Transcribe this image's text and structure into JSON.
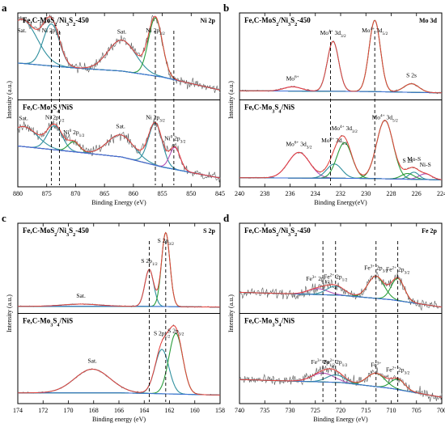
{
  "panels": [
    {
      "letter": "a",
      "tag": "Ni 2p",
      "top_sample": "Fe,C-MoS2/Ni3S2-450",
      "bottom_sample": "Fe,C-Mo3S4/NiS",
      "xlabel": "Binding Energy (eV)",
      "ylabel": "Intensity (a.u.)",
      "xlim": [
        880,
        845
      ],
      "ticks": [
        880,
        875,
        870,
        865,
        860,
        855,
        850,
        845
      ]
    },
    {
      "letter": "b",
      "tag": "Mo 3d",
      "top_sample": "Fe,C-MoS2/Ni3S2-450",
      "bottom_sample": "Fe,C-Mo3S4/NiS",
      "xlabel": "Binding Energy(eV)",
      "ylabel": "Intensity (a.u.)",
      "xlim": [
        240,
        224
      ],
      "ticks": [
        240,
        238,
        236,
        234,
        232,
        230,
        228,
        226,
        224
      ]
    },
    {
      "letter": "c",
      "tag": "S 2p",
      "top_sample": "Fe,C-MoS2/Ni3S2-450",
      "bottom_sample": "Fe,C-Mo3S4/NiS",
      "xlabel": "Binding energy (eV)",
      "ylabel": "Intensity (a.u.)",
      "xlim": [
        174,
        158
      ],
      "ticks": [
        174,
        172,
        170,
        168,
        166,
        164,
        162,
        160,
        158
      ]
    },
    {
      "letter": "d",
      "tag": "Fe 2p",
      "top_sample": "Fe,C-MoS2/Ni3S2-450",
      "bottom_sample": "Fe,C-Mo3S4/NiS",
      "xlabel": "Binding Energy (eV)",
      "ylabel": "Intensity (a.u.)",
      "xlim": [
        740,
        700
      ],
      "ticks": [
        740,
        735,
        730,
        725,
        720,
        715,
        710,
        705,
        700
      ]
    }
  ],
  "chart_data": [
    {
      "type": "line",
      "title": "Ni 2p",
      "xlabel": "Binding Energy (eV)",
      "ylabel": "Intensity (a.u.)",
      "xlim": [
        880,
        845
      ],
      "grid": false,
      "dashed_lines_x": [
        874.2,
        872.8,
        856.2,
        853.0
      ],
      "top": {
        "sample": "Fe,C-MoS2/Ni3S2-450",
        "background": [
          [
            880,
            0.32
          ],
          [
            870,
            0.27
          ],
          [
            862,
            0.24
          ],
          [
            855,
            0.18
          ],
          [
            845,
            0.05
          ]
        ],
        "peaks": [
          {
            "label": "Sat.",
            "center": 879.3,
            "height": 0.44,
            "width": 2.6
          },
          {
            "label": "Ni 2p1/2",
            "center": 874.2,
            "height": 0.42,
            "width": 1.4
          },
          {
            "label": "Sat.",
            "center": 862.0,
            "height": 0.31,
            "width": 2.4
          },
          {
            "label": "Ni 2p3/2",
            "center": 856.2,
            "height": 0.58,
            "width": 1.2
          }
        ]
      },
      "bottom": {
        "sample": "Fe,C-Mo3S4/NiS",
        "background": [
          [
            880,
            0.36
          ],
          [
            870,
            0.3
          ],
          [
            862,
            0.25
          ],
          [
            855,
            0.15
          ],
          [
            845,
            0.04
          ]
        ],
        "peaks": [
          {
            "label": "Sat.",
            "center": 879.0,
            "height": 0.2,
            "width": 2.4
          },
          {
            "label": "Ni 2p1/2",
            "center": 873.6,
            "height": 0.24,
            "width": 1.3
          },
          {
            "label": "Ni0 2p1/2",
            "center": 870.3,
            "height": 0.1,
            "width": 1.0
          },
          {
            "label": "Sat.",
            "center": 862.2,
            "height": 0.22,
            "width": 2.3
          },
          {
            "label": "Ni 2p3/2",
            "center": 856.2,
            "height": 0.42,
            "width": 1.2
          },
          {
            "label": "Ni0 2p3/2",
            "center": 852.8,
            "height": 0.22,
            "width": 0.9
          }
        ]
      }
    },
    {
      "type": "line",
      "title": "Mo 3d",
      "xlabel": "Binding Energy(eV)",
      "ylabel": "Intensity (a.u.)",
      "xlim": [
        240,
        224
      ],
      "grid": false,
      "dashed_lines_x": [
        232.8,
        229.3
      ],
      "top": {
        "sample": "Fe,C-MoS2/Ni3S2-450",
        "background": [
          [
            240,
            0.06
          ],
          [
            230,
            0.05
          ],
          [
            224,
            0.03
          ]
        ],
        "peaks": [
          {
            "label": "Mo6+",
            "center": 235.8,
            "height": 0.06,
            "width": 0.7
          },
          {
            "label": "Mo4+ 3d3/2",
            "center": 232.6,
            "height": 0.7,
            "width": 0.45
          },
          {
            "label": "Mo4+ 3d5/2",
            "center": 229.3,
            "height": 1.0,
            "width": 0.45
          },
          {
            "label": "S 2s",
            "center": 226.4,
            "height": 0.12,
            "width": 0.6
          }
        ]
      },
      "bottom": {
        "sample": "Fe,C-Mo3S4/NiS",
        "background": [
          [
            240,
            0.06
          ],
          [
            230,
            0.05
          ],
          [
            224,
            0.03
          ]
        ],
        "peaks": [
          {
            "label": "Mo6+ 3d3/2",
            "center": 235.3,
            "height": 0.36,
            "width": 0.85
          },
          {
            "label": "Mo6+ 3d5/2",
            "center": 232.5,
            "height": 0.2,
            "width": 0.6
          },
          {
            "label": "Mo4+ 3d3/2",
            "center": 231.7,
            "height": 0.5,
            "width": 0.6
          },
          {
            "label": "Mo4+ 3d5/2",
            "center": 228.5,
            "height": 0.82,
            "width": 0.65
          },
          {
            "label": "Mo-S",
            "center": 226.2,
            "height": 0.1,
            "width": 0.4
          },
          {
            "label": "Ni-S",
            "center": 225.3,
            "height": 0.08,
            "width": 0.5
          },
          {
            "label": "S 2s",
            "center": 226.7,
            "height": 0.08,
            "width": 0.5
          }
        ]
      }
    },
    {
      "type": "line",
      "title": "S 2p",
      "xlabel": "Binding energy (eV)",
      "ylabel": "Intensity (a.u.)",
      "xlim": [
        174,
        158
      ],
      "grid": false,
      "dashed_lines_x": [
        163.6,
        162.3
      ],
      "top": {
        "sample": "Fe,C-MoS2/Ni3S2-450",
        "background": [
          [
            174,
            0.03
          ],
          [
            164,
            0.03
          ],
          [
            158,
            0.02
          ]
        ],
        "peaks": [
          {
            "label": "Sat.",
            "center": 169.0,
            "height": 0.03,
            "width": 1.5
          },
          {
            "label": "S 2p1/2",
            "center": 163.6,
            "height": 0.5,
            "width": 0.35
          },
          {
            "label": "S 2p3/2",
            "center": 162.3,
            "height": 1.0,
            "width": 0.33
          }
        ]
      },
      "bottom": {
        "sample": "Fe,C-Mo3S4/NiS",
        "background": [
          [
            174,
            0.08
          ],
          [
            166,
            0.08
          ],
          [
            158,
            0.05
          ]
        ],
        "peaks": [
          {
            "label": "Sat.",
            "center": 168.1,
            "height": 0.32,
            "width": 1.4
          },
          {
            "label": "S 2p1/2",
            "center": 162.6,
            "height": 0.6,
            "width": 0.55
          },
          {
            "label": "S 2p3/2",
            "center": 161.5,
            "height": 0.82,
            "width": 0.55
          }
        ]
      }
    },
    {
      "type": "line",
      "title": "Fe 2p",
      "xlabel": "Binding Energy (eV)",
      "ylabel": "Intensity (a.u.)",
      "xlim": [
        740,
        700
      ],
      "grid": false,
      "dashed_lines_x": [
        723.5,
        721.0,
        713.0,
        708.7
      ],
      "top": {
        "sample": "Fe,C-MoS2/Ni3S2-450",
        "background": [
          [
            740,
            0.22
          ],
          [
            720,
            0.18
          ],
          [
            710,
            0.12
          ],
          [
            700,
            0.02
          ]
        ],
        "peaks": [
          {
            "label": "Fe3+ 2p1/2",
            "center": 724.5,
            "height": 0.08,
            "width": 2.0
          },
          {
            "label": "Fe2+ 2p1/2",
            "center": 721.0,
            "height": 0.12,
            "width": 1.8
          },
          {
            "label": "Fe3+ 2p3/2",
            "center": 713.0,
            "height": 0.3,
            "width": 1.6
          },
          {
            "label": "Fe2+ 2p3/2",
            "center": 708.7,
            "height": 0.3,
            "width": 1.3
          }
        ]
      },
      "bottom": {
        "sample": "Fe,C-Mo3S4/NiS",
        "background": [
          [
            740,
            0.26
          ],
          [
            720,
            0.22
          ],
          [
            710,
            0.14
          ],
          [
            700,
            0.02
          ]
        ],
        "peaks": [
          {
            "label": "Fe3+ 2p1/2",
            "center": 723.5,
            "height": 0.12,
            "width": 2.2
          },
          {
            "label": "Fe2+ 2p1/2",
            "center": 721.0,
            "height": 0.1,
            "width": 1.8
          },
          {
            "label": "Fe3+",
            "center": 713.0,
            "height": 0.18,
            "width": 1.8
          },
          {
            "label": "Fe2+ 2p3/2",
            "center": 708.7,
            "height": 0.14,
            "width": 1.4
          }
        ]
      }
    }
  ],
  "colors": {
    "raw": "#5a5a5a",
    "envelope": "#e8413b",
    "background": "#3b6fd8",
    "green": "#2a9d3b",
    "purple": "#b04fb4",
    "teal": "#2f8f9e",
    "dash": "#000000"
  }
}
